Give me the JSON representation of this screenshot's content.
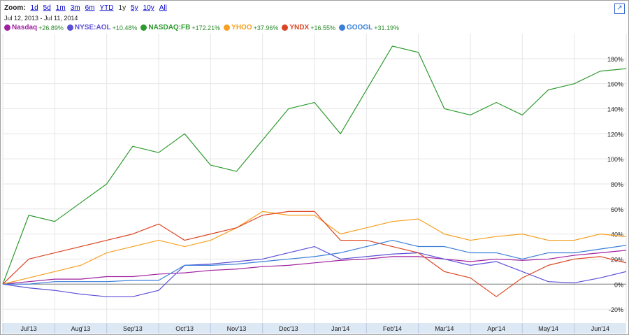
{
  "zoom": {
    "label": "Zoom:",
    "options": [
      "1d",
      "5d",
      "1m",
      "3m",
      "6m",
      "YTD",
      "1y",
      "5y",
      "10y",
      "All"
    ],
    "selected": "1y"
  },
  "date_range": "Jul 12, 2013  -  Jul 11, 2014",
  "legend": [
    {
      "name": "Nasdaq",
      "change": "+26.89%",
      "color": "#a020a0"
    },
    {
      "name": "NYSE:AOL",
      "change": "+10.48%",
      "color": "#5b4fd6"
    },
    {
      "name": "NASDAQ:FB",
      "change": "+172.21%",
      "color": "#2e9a2e"
    },
    {
      "name": "YHOO",
      "change": "+37.96%",
      "color": "#f5a020"
    },
    {
      "name": "YNDX",
      "change": "+16.55%",
      "color": "#dd4422"
    },
    {
      "name": "GOOGL",
      "change": "+31.19%",
      "color": "#3a7fd8"
    }
  ],
  "expand_icon": "expand-icon",
  "chart_data": {
    "type": "line",
    "x_ticks": [
      "Jul'13",
      "Aug'13",
      "Sep'13",
      "Oct'13",
      "Nov'13",
      "Dec'13",
      "Jan'14",
      "Feb'14",
      "Mar'14",
      "Apr'14",
      "May'14",
      "Jun'14"
    ],
    "y_ticks": [
      "-20%",
      "0%",
      "20%",
      "40%",
      "60%",
      "80%",
      "100%",
      "120%",
      "140%",
      "160%",
      "180%"
    ],
    "ylim": [
      -30,
      200
    ],
    "x": [
      0,
      0.5,
      1,
      1.5,
      2,
      2.5,
      3,
      3.5,
      4,
      4.5,
      5,
      5.5,
      6,
      6.5,
      7,
      7.5,
      8,
      8.5,
      9,
      9.5,
      10,
      10.5,
      11,
      11.5,
      12
    ],
    "series": [
      {
        "name": "Nasdaq",
        "color": "#a020a0",
        "values": [
          0,
          2,
          4,
          4,
          6,
          6,
          8,
          9,
          11,
          12,
          14,
          15,
          17,
          19,
          20,
          22,
          22,
          20,
          18,
          20,
          19,
          20,
          23,
          25,
          27
        ]
      },
      {
        "name": "NYSE:AOL",
        "color": "#5b4fd6",
        "values": [
          0,
          -3,
          -5,
          -8,
          -10,
          -10,
          -5,
          15,
          16,
          18,
          20,
          25,
          30,
          20,
          22,
          24,
          25,
          20,
          15,
          18,
          10,
          2,
          1,
          5,
          10
        ]
      },
      {
        "name": "NASDAQ:FB",
        "color": "#2e9a2e",
        "values": [
          0,
          55,
          50,
          65,
          80,
          110,
          105,
          120,
          95,
          90,
          115,
          140,
          145,
          120,
          155,
          190,
          185,
          140,
          135,
          145,
          135,
          155,
          160,
          170,
          172
        ]
      },
      {
        "name": "YHOO",
        "color": "#f5a020",
        "values": [
          0,
          5,
          10,
          15,
          25,
          30,
          35,
          30,
          35,
          45,
          58,
          55,
          55,
          40,
          45,
          50,
          52,
          40,
          35,
          38,
          40,
          35,
          35,
          40,
          38
        ]
      },
      {
        "name": "YNDX",
        "color": "#dd4422",
        "values": [
          0,
          20,
          25,
          30,
          35,
          40,
          48,
          35,
          40,
          45,
          55,
          58,
          58,
          35,
          35,
          30,
          25,
          10,
          5,
          -10,
          5,
          15,
          20,
          22,
          17
        ]
      },
      {
        "name": "GOOGL",
        "color": "#3a7fd8",
        "values": [
          0,
          0,
          2,
          2,
          2,
          3,
          3,
          15,
          15,
          16,
          18,
          20,
          22,
          25,
          30,
          35,
          30,
          30,
          25,
          25,
          20,
          25,
          25,
          28,
          31
        ]
      }
    ]
  }
}
